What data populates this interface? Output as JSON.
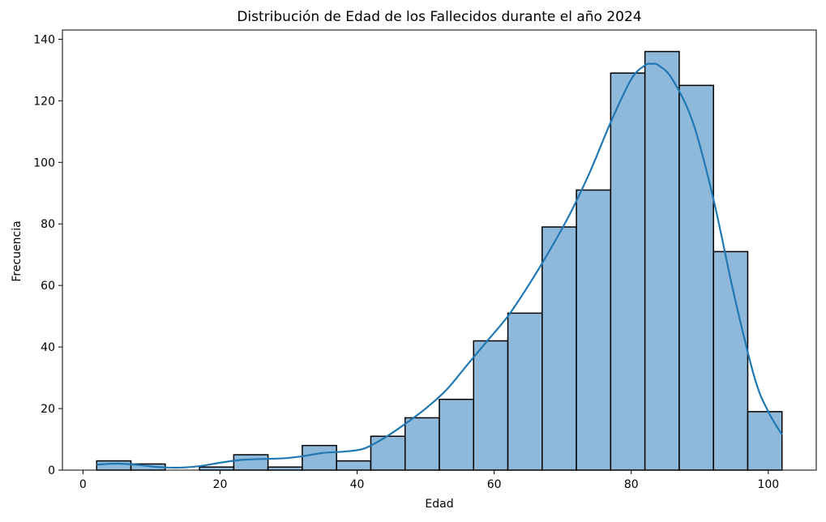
{
  "chart_data": {
    "type": "histogram",
    "title": "Distribución de Edad de los Fallecidos durante el año 2024",
    "xlabel": "Edad",
    "ylabel": "Frecuencia",
    "xlim": [
      -3,
      107
    ],
    "ylim": [
      0,
      143
    ],
    "xticks": [
      0,
      20,
      40,
      60,
      80,
      100
    ],
    "yticks": [
      0,
      20,
      40,
      60,
      80,
      100,
      120,
      140
    ],
    "grid": false,
    "bar_color": "#8fb9da",
    "edge_color": "#000000",
    "kde_color": "#1f77b4",
    "bins": [
      {
        "start": 2,
        "end": 7,
        "count": 3
      },
      {
        "start": 7,
        "end": 12,
        "count": 2
      },
      {
        "start": 12,
        "end": 17,
        "count": 0
      },
      {
        "start": 17,
        "end": 22,
        "count": 1
      },
      {
        "start": 22,
        "end": 27,
        "count": 5
      },
      {
        "start": 27,
        "end": 32,
        "count": 1
      },
      {
        "start": 32,
        "end": 37,
        "count": 8
      },
      {
        "start": 37,
        "end": 42,
        "count": 3
      },
      {
        "start": 42,
        "end": 47,
        "count": 11
      },
      {
        "start": 47,
        "end": 52,
        "count": 17
      },
      {
        "start": 52,
        "end": 57,
        "count": 23
      },
      {
        "start": 57,
        "end": 62,
        "count": 42
      },
      {
        "start": 62,
        "end": 67,
        "count": 51
      },
      {
        "start": 67,
        "end": 72,
        "count": 79
      },
      {
        "start": 72,
        "end": 77,
        "count": 91
      },
      {
        "start": 77,
        "end": 82,
        "count": 129
      },
      {
        "start": 82,
        "end": 87,
        "count": 136
      },
      {
        "start": 87,
        "end": 92,
        "count": 125
      },
      {
        "start": 92,
        "end": 97,
        "count": 71
      },
      {
        "start": 97,
        "end": 102,
        "count": 19
      }
    ],
    "kde": {
      "x": [
        2,
        5,
        8,
        11,
        14,
        17,
        20,
        23,
        26,
        29,
        32,
        35,
        38,
        41,
        44,
        47,
        50,
        53,
        56,
        59,
        62,
        65,
        68,
        71,
        74,
        77,
        80,
        82,
        83,
        84,
        86,
        89,
        92,
        95,
        98,
        100,
        102
      ],
      "y": [
        1.8,
        2.1,
        1.7,
        1.0,
        0.8,
        1.3,
        2.4,
        3.3,
        3.6,
        3.8,
        4.5,
        5.6,
        6.0,
        7.0,
        10.5,
        15.0,
        20.0,
        26.0,
        34.0,
        42.0,
        50.0,
        60.0,
        71.0,
        83.0,
        97.0,
        113.0,
        127.0,
        131.5,
        132.0,
        131.5,
        127.0,
        113.0,
        88.0,
        57.0,
        30.0,
        19.0,
        11.5
      ]
    }
  }
}
